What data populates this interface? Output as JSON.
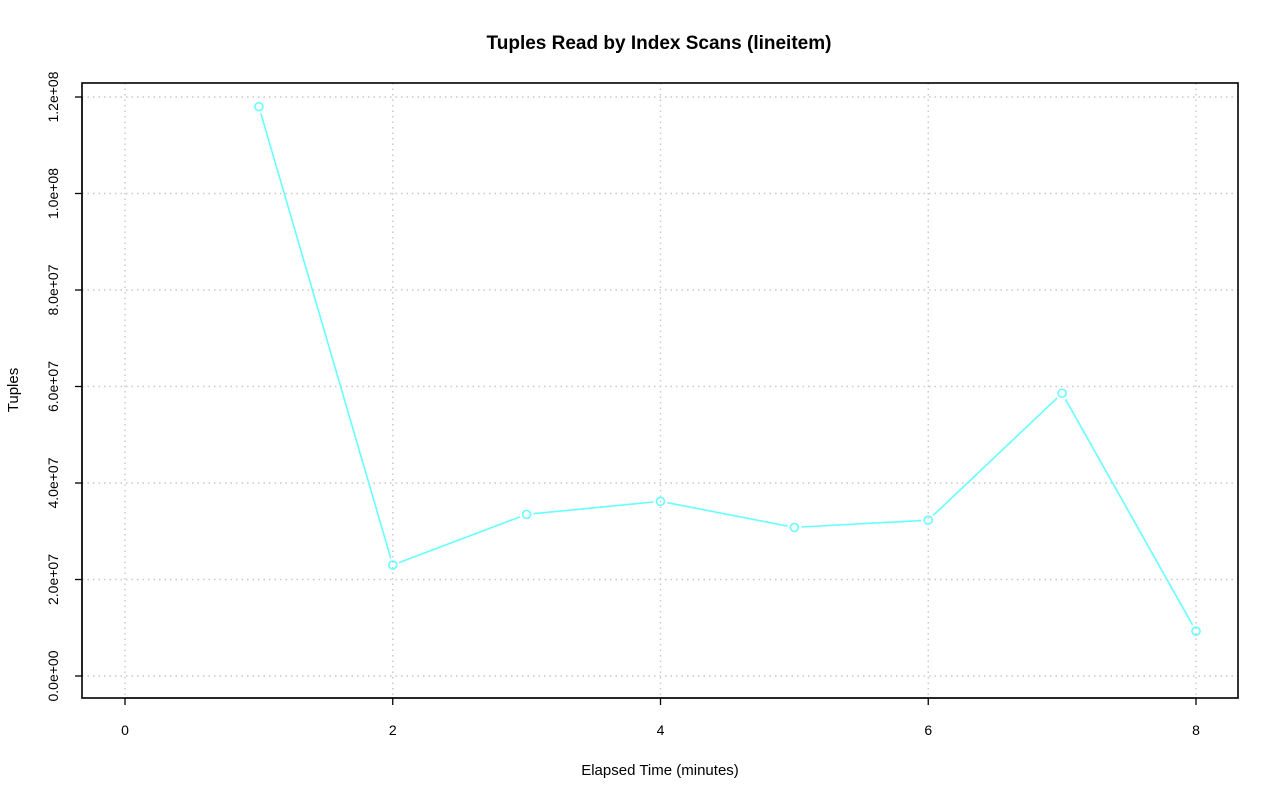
{
  "chart_data": {
    "type": "line",
    "title": "Tuples Read by Index Scans (lineitem)",
    "xlabel": "Elapsed Time (minutes)",
    "ylabel": "Tuples",
    "xlim": [
      0,
      8
    ],
    "ylim": [
      0,
      120000000
    ],
    "xticks": [
      0,
      2,
      4,
      6,
      8
    ],
    "xtick_labels": [
      "0",
      "2",
      "4",
      "6",
      "8"
    ],
    "yticks": [
      0,
      20000000,
      40000000,
      60000000,
      80000000,
      100000000,
      120000000
    ],
    "ytick_labels": [
      "0.0e+00",
      "2.0e+07",
      "4.0e+07",
      "6.0e+07",
      "8.0e+07",
      "1.0e+08",
      "1.2e+08"
    ],
    "grid": true,
    "series": [
      {
        "color": "#66ffff",
        "marker": "open-circle",
        "x": [
          1,
          2,
          3,
          4,
          5,
          6,
          7,
          8
        ],
        "y": [
          118000000,
          23000000,
          33500000,
          36200000,
          30800000,
          32300000,
          58600000,
          9300000
        ]
      }
    ]
  }
}
